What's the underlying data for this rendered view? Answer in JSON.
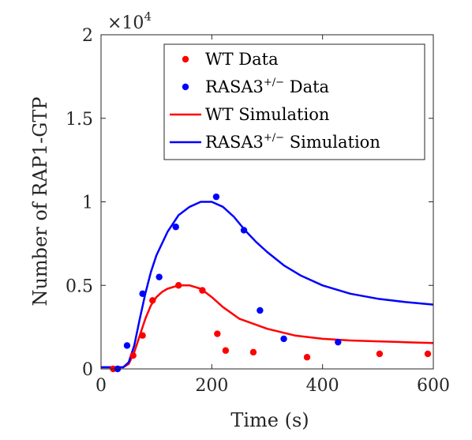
{
  "chart_data": {
    "type": "scatter",
    "xlabel": "Time (s)",
    "ylabel": "Number of RAP1-GTP",
    "y_multiplier": {
      "base": "×10",
      "exponent": "4"
    },
    "xlim": [
      0,
      600
    ],
    "ylim": [
      0,
      2
    ],
    "x_ticks": [
      "0",
      "200",
      "400",
      "600"
    ],
    "y_ticks": [
      "0",
      "0.5",
      "1",
      "1.5",
      "2"
    ],
    "grid": false,
    "legend_position": "top-right",
    "series": [
      {
        "name": "WT Data",
        "name_sup": "",
        "name_tail": "",
        "kind": "points",
        "color": "#ff0000",
        "points": [
          [
            22,
            0.0
          ],
          [
            58,
            0.08
          ],
          [
            75,
            0.2
          ],
          [
            93,
            0.41
          ],
          [
            140,
            0.5
          ],
          [
            183,
            0.47
          ],
          [
            210,
            0.21
          ],
          [
            225,
            0.11
          ],
          [
            275,
            0.1
          ],
          [
            372,
            0.07
          ],
          [
            503,
            0.09
          ],
          [
            590,
            0.09
          ]
        ]
      },
      {
        "name": "RASA3",
        "name_sup": "+/−",
        "name_tail": " Data",
        "kind": "points",
        "color": "#0000ff",
        "points": [
          [
            30,
            0.0
          ],
          [
            47,
            0.14
          ],
          [
            75,
            0.45
          ],
          [
            105,
            0.55
          ],
          [
            135,
            0.85
          ],
          [
            208,
            1.03
          ],
          [
            258,
            0.83
          ],
          [
            287,
            0.35
          ],
          [
            330,
            0.18
          ],
          [
            428,
            0.16
          ]
        ]
      },
      {
        "name": "WT Simulation",
        "name_sup": "",
        "name_tail": "",
        "kind": "line",
        "color": "#ff0000",
        "points": [
          [
            0,
            0.01
          ],
          [
            40,
            0.01
          ],
          [
            50,
            0.03
          ],
          [
            60,
            0.1
          ],
          [
            70,
            0.2
          ],
          [
            80,
            0.3
          ],
          [
            90,
            0.38
          ],
          [
            100,
            0.43
          ],
          [
            110,
            0.46
          ],
          [
            120,
            0.48
          ],
          [
            140,
            0.5
          ],
          [
            160,
            0.5
          ],
          [
            180,
            0.48
          ],
          [
            200,
            0.43
          ],
          [
            220,
            0.37
          ],
          [
            250,
            0.3
          ],
          [
            300,
            0.24
          ],
          [
            350,
            0.2
          ],
          [
            400,
            0.18
          ],
          [
            450,
            0.17
          ],
          [
            500,
            0.165
          ],
          [
            550,
            0.16
          ],
          [
            600,
            0.155
          ]
        ]
      },
      {
        "name": "RASA3",
        "name_sup": "+/−",
        "name_tail": " Simulation",
        "kind": "line",
        "color": "#0000ff",
        "points": [
          [
            0,
            0.01
          ],
          [
            40,
            0.01
          ],
          [
            50,
            0.04
          ],
          [
            60,
            0.14
          ],
          [
            70,
            0.3
          ],
          [
            80,
            0.45
          ],
          [
            90,
            0.58
          ],
          [
            100,
            0.68
          ],
          [
            120,
            0.82
          ],
          [
            140,
            0.92
          ],
          [
            160,
            0.97
          ],
          [
            180,
            1.0
          ],
          [
            200,
            1.0
          ],
          [
            220,
            0.97
          ],
          [
            240,
            0.91
          ],
          [
            260,
            0.83
          ],
          [
            280,
            0.76
          ],
          [
            300,
            0.7
          ],
          [
            330,
            0.62
          ],
          [
            360,
            0.56
          ],
          [
            400,
            0.5
          ],
          [
            450,
            0.45
          ],
          [
            500,
            0.42
          ],
          [
            550,
            0.4
          ],
          [
            600,
            0.385
          ]
        ]
      }
    ]
  }
}
